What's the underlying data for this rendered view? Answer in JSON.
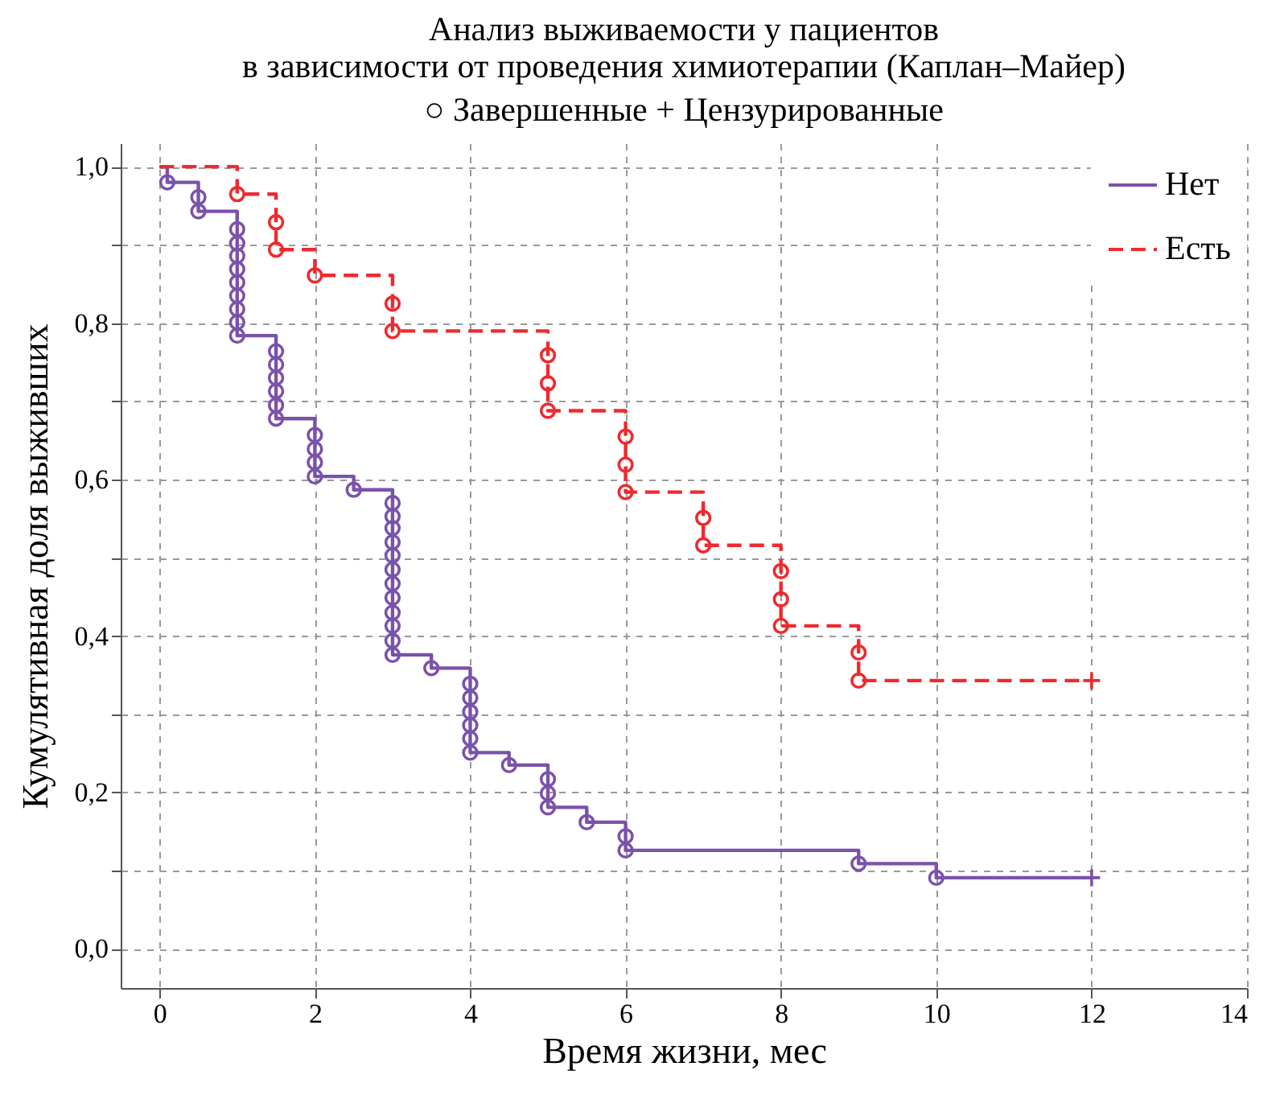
{
  "chart_data": {
    "type": "step",
    "title": "Анализ выживаемости у пациентов\nв зависимости от проведения химиотерапии (Каплан–Майер)",
    "subtitle": "○ Завершенные      + Цензурированные",
    "xlabel": "Время жизни, мес",
    "ylabel": "Кумулятивная доля выживших",
    "xlim": [
      -0.5,
      14
    ],
    "xticks": [
      0,
      2,
      4,
      6,
      8,
      10,
      12,
      14
    ],
    "ylim": [
      -0.05,
      1.03
    ],
    "yticks": [
      {
        "value": 0,
        "label": "0,0"
      },
      {
        "value": 0.1,
        "label": null
      },
      {
        "value": 0.2,
        "label": "0,2"
      },
      {
        "value": 0.3,
        "label": null
      },
      {
        "value": 0.4,
        "label": "0,4"
      },
      {
        "value": 0.5,
        "label": null
      },
      {
        "value": 0.6,
        "label": "0,6"
      },
      {
        "value": 0.7,
        "label": null
      },
      {
        "value": 0.8,
        "label": "0,8"
      },
      {
        "value": 0.9,
        "label": null
      },
      {
        "value": 1,
        "label": "1,0"
      }
    ],
    "grid": true,
    "legend": "top right",
    "series": [
      {
        "name": "Нет",
        "type": "step",
        "color": "#7b52ab",
        "line_style": "solid",
        "x": [
          0,
          0.1,
          0.5,
          0.5,
          1,
          1,
          1,
          1,
          1,
          1,
          1,
          1,
          1,
          1.5,
          1.5,
          1.5,
          1.5,
          1.5,
          1.5,
          2,
          2,
          2,
          2,
          2.5,
          3,
          3,
          3,
          3,
          3,
          3,
          3,
          3,
          3,
          3,
          3,
          3,
          3.5,
          4,
          4,
          4,
          4,
          4,
          4,
          4.5,
          5,
          5,
          5,
          5.5,
          6,
          6,
          9,
          10,
          12
        ],
        "values": [
          1.0,
          0.98,
          0.961,
          0.943,
          0.92,
          0.902,
          0.886,
          0.869,
          0.852,
          0.835,
          0.818,
          0.801,
          0.784,
          0.764,
          0.747,
          0.73,
          0.713,
          0.695,
          0.678,
          0.657,
          0.639,
          0.622,
          0.604,
          0.587,
          0.57,
          0.553,
          0.538,
          0.52,
          0.503,
          0.485,
          0.467,
          0.449,
          0.43,
          0.413,
          0.394,
          0.376,
          0.359,
          0.339,
          0.321,
          0.303,
          0.286,
          0.269,
          0.251,
          0.235,
          0.217,
          0.199,
          0.181,
          0.162,
          0.144,
          0.126,
          0.109,
          0.091,
          0.091
        ]
      },
      {
        "name": "Есть",
        "type": "step",
        "color": "#ee2a2e",
        "line_style": "dashed",
        "x": [
          0,
          1,
          1.5,
          1.5,
          2,
          3,
          3,
          5,
          5,
          5,
          6,
          6,
          6,
          7,
          7,
          8,
          8,
          8,
          9,
          9,
          12
        ],
        "values": [
          1.0,
          0.965,
          0.929,
          0.894,
          0.861,
          0.825,
          0.79,
          0.759,
          0.723,
          0.688,
          0.655,
          0.619,
          0.584,
          0.551,
          0.516,
          0.483,
          0.447,
          0.413,
          0.379,
          0.343,
          0.343
        ]
      },
      {
        "type": "scatter",
        "color": "#7b52ab",
        "marker": "circle",
        "x": [
          0.1,
          0.5,
          0.5,
          1,
          1,
          1,
          1,
          1,
          1,
          1,
          1,
          1,
          1.5,
          1.5,
          1.5,
          1.5,
          1.5,
          1.5,
          2,
          2,
          2,
          2,
          2.5,
          3,
          3,
          3,
          3,
          3,
          3,
          3,
          3,
          3,
          3,
          3,
          3,
          3.5,
          4,
          4,
          4,
          4,
          4,
          4,
          4.5,
          5,
          5,
          5,
          5.5,
          6,
          6,
          9,
          10
        ],
        "values": [
          0.98,
          0.961,
          0.943,
          0.92,
          0.902,
          0.886,
          0.869,
          0.852,
          0.835,
          0.818,
          0.801,
          0.784,
          0.764,
          0.747,
          0.73,
          0.713,
          0.695,
          0.678,
          0.657,
          0.639,
          0.622,
          0.604,
          0.587,
          0.57,
          0.553,
          0.538,
          0.52,
          0.503,
          0.485,
          0.467,
          0.449,
          0.43,
          0.413,
          0.394,
          0.376,
          0.359,
          0.339,
          0.321,
          0.303,
          0.286,
          0.269,
          0.251,
          0.235,
          0.217,
          0.199,
          0.181,
          0.162,
          0.144,
          0.126,
          0.109,
          0.091
        ]
      },
      {
        "type": "scatter",
        "color": "#ee2a2e",
        "marker": "circle",
        "x": [
          1,
          1.5,
          1.5,
          2,
          3,
          3,
          5,
          5,
          5,
          6,
          6,
          6,
          7,
          7,
          8,
          8,
          8,
          9,
          9
        ],
        "values": [
          0.965,
          0.929,
          0.894,
          0.861,
          0.825,
          0.79,
          0.759,
          0.723,
          0.688,
          0.655,
          0.619,
          0.584,
          0.551,
          0.516,
          0.483,
          0.447,
          0.413,
          0.379,
          0.343
        ]
      },
      {
        "type": "scatter",
        "color": "#7b52ab",
        "marker": "cross",
        "x": [
          12
        ],
        "values": [
          0.091
        ]
      },
      {
        "type": "scatter",
        "color": "#ee2a2e",
        "marker": "cross",
        "x": [
          12
        ],
        "values": [
          0.343
        ]
      }
    ]
  }
}
